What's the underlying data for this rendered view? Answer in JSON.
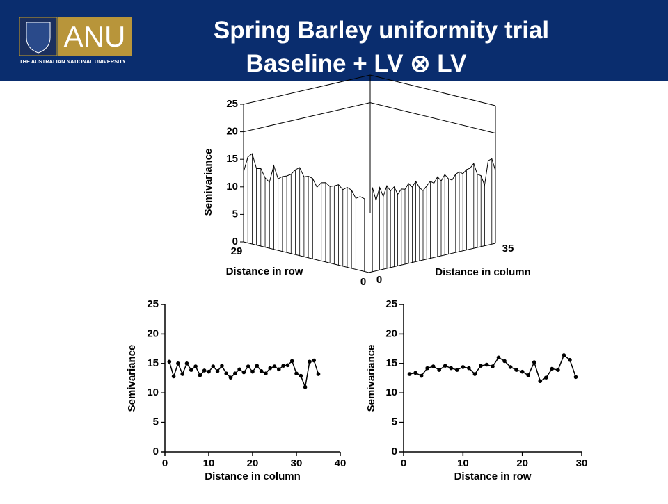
{
  "header": {
    "title": "Spring Barley uniformity trial",
    "subtitle": "Baseline + LV ⊗ LV",
    "logo_text": "ANU",
    "logo_subtitle": "THE AUSTRALIAN NATIONAL UNIVERSITY"
  },
  "chart_data": [
    {
      "type": "surface",
      "zlabel": "Semivariance",
      "row_label": "Distance in row",
      "column_label": "Distance in column",
      "zlim": [
        0,
        25
      ],
      "zticks": [
        0,
        5,
        10,
        15,
        20,
        25
      ],
      "row_lim": [
        0,
        29
      ],
      "row_ticks": [
        0,
        29
      ],
      "column_lim": [
        0,
        35
      ],
      "column_ticks": [
        0,
        35
      ],
      "color": "#000000"
    },
    {
      "type": "line",
      "xlabel": "Distance in column",
      "ylabel": "Semivariance",
      "x": [
        1,
        2,
        3,
        4,
        5,
        6,
        7,
        8,
        9,
        10,
        11,
        12,
        13,
        14,
        15,
        16,
        17,
        18,
        19,
        20,
        21,
        22,
        23,
        24,
        25,
        26,
        27,
        28,
        29,
        30,
        31,
        32,
        33,
        34,
        35
      ],
      "values": [
        15.3,
        12.8,
        15.0,
        13.2,
        15.0,
        13.9,
        14.5,
        13.0,
        13.8,
        13.6,
        14.5,
        13.7,
        14.6,
        13.3,
        12.6,
        13.3,
        14.0,
        13.5,
        14.5,
        13.6,
        14.6,
        13.7,
        13.3,
        14.2,
        14.5,
        14.0,
        14.6,
        14.7,
        15.4,
        13.3,
        12.9,
        11.0,
        15.3,
        15.5,
        13.2
      ],
      "xlim": [
        0,
        40
      ],
      "xticks": [
        0,
        10,
        20,
        30,
        40
      ],
      "ylim": [
        0,
        25
      ],
      "yticks": [
        0,
        5,
        10,
        15,
        20,
        25
      ],
      "color": "#000000"
    },
    {
      "type": "line",
      "xlabel": "Distance in row",
      "ylabel": "Semivariance",
      "x": [
        1,
        2,
        3,
        4,
        5,
        6,
        7,
        8,
        9,
        10,
        11,
        12,
        13,
        14,
        15,
        16,
        17,
        18,
        19,
        20,
        21,
        22,
        23,
        24,
        25,
        26,
        27,
        28,
        29
      ],
      "values": [
        13.2,
        13.4,
        12.9,
        14.2,
        14.5,
        13.9,
        14.6,
        14.2,
        13.9,
        14.4,
        14.2,
        13.2,
        14.6,
        14.8,
        14.5,
        16.0,
        15.4,
        14.4,
        13.9,
        13.6,
        13.0,
        15.2,
        12.0,
        12.6,
        14.1,
        13.9,
        16.4,
        15.6,
        12.7
      ],
      "xlim": [
        0,
        30
      ],
      "xticks": [
        0,
        10,
        20,
        30
      ],
      "ylim": [
        0,
        25
      ],
      "yticks": [
        0,
        5,
        10,
        15,
        20,
        25
      ],
      "color": "#000000"
    }
  ]
}
